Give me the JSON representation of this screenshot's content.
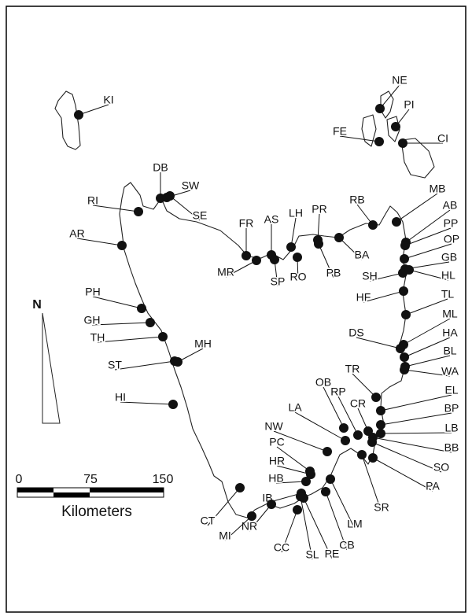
{
  "sites": [
    {
      "code": "KI"
    },
    {
      "code": "NE"
    },
    {
      "code": "PI"
    },
    {
      "code": "CI"
    },
    {
      "code": "FE"
    },
    {
      "code": "DB"
    },
    {
      "code": "SW"
    },
    {
      "code": "SE"
    },
    {
      "code": "RI"
    },
    {
      "code": "AR"
    },
    {
      "code": "FR"
    },
    {
      "code": "AS"
    },
    {
      "code": "LH"
    },
    {
      "code": "PR"
    },
    {
      "code": "RB"
    },
    {
      "code": "MB"
    },
    {
      "code": "AB"
    },
    {
      "code": "PP"
    },
    {
      "code": "OP"
    },
    {
      "code": "GB"
    },
    {
      "code": "SH"
    },
    {
      "code": "HL"
    },
    {
      "code": "HF"
    },
    {
      "code": "TL"
    },
    {
      "code": "BA"
    },
    {
      "code": "PB"
    },
    {
      "code": "MR"
    },
    {
      "code": "SP"
    },
    {
      "code": "RO"
    },
    {
      "code": "PH"
    },
    {
      "code": "GH"
    },
    {
      "code": "TH"
    },
    {
      "code": "ST"
    },
    {
      "code": "MH"
    },
    {
      "code": "HI"
    },
    {
      "code": "DS"
    },
    {
      "code": "ML"
    },
    {
      "code": "HA"
    },
    {
      "code": "BL"
    },
    {
      "code": "WA"
    },
    {
      "code": "TR"
    },
    {
      "code": "EL"
    },
    {
      "code": "BP"
    },
    {
      "code": "LB"
    },
    {
      "code": "BB"
    },
    {
      "code": "SO"
    },
    {
      "code": "PA"
    },
    {
      "code": "OB"
    },
    {
      "code": "RP"
    },
    {
      "code": "CR"
    },
    {
      "code": "LA"
    },
    {
      "code": "NW"
    },
    {
      "code": "PC"
    },
    {
      "code": "HR"
    },
    {
      "code": "HB"
    },
    {
      "code": "IB"
    },
    {
      "code": "SR"
    },
    {
      "code": "LM"
    },
    {
      "code": "CB"
    },
    {
      "code": "PE"
    },
    {
      "code": "SL"
    },
    {
      "code": "CC"
    },
    {
      "code": "NR"
    },
    {
      "code": "MI"
    },
    {
      "code": "CT"
    }
  ],
  "north_arrow": {
    "label": "N"
  },
  "scale_bar": {
    "ticks": [
      "0",
      "75",
      "150"
    ],
    "unit": "Kilometers"
  }
}
